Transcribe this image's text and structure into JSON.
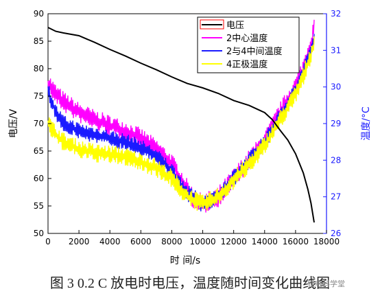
{
  "caption": "图 3 0.2 C 放电时电压，温度随时间变化曲线图",
  "watermark": "锂电科学堂",
  "chart_data": {
    "type": "line",
    "xlabel": "时 间/s",
    "ylabel_left": "电压/V",
    "ylabel_right": "温度/°C",
    "xlim": [
      0,
      18000
    ],
    "ylim_left": [
      50,
      90
    ],
    "ylim_right": [
      26,
      32
    ],
    "xticks": [
      0,
      2000,
      4000,
      6000,
      8000,
      10000,
      12000,
      14000,
      16000,
      18000
    ],
    "yticks_left": [
      50,
      55,
      60,
      65,
      70,
      75,
      80,
      85,
      90
    ],
    "yticks_right": [
      26,
      27,
      28,
      29,
      30,
      31,
      32
    ],
    "legend_position": "top-right",
    "colors": {
      "axis_left": "#000000",
      "axis_right": "#1a1aff"
    },
    "series": [
      {
        "name": "电压",
        "axis": "left",
        "color": "#000000",
        "noise": 0,
        "x": [
          0,
          500,
          1000,
          2000,
          3000,
          4000,
          5000,
          6000,
          7000,
          8000,
          9000,
          10000,
          11000,
          12000,
          13000,
          14000,
          14500,
          15000,
          15500,
          16000,
          16500,
          16800,
          17000,
          17200
        ],
        "y": [
          87.5,
          86.8,
          86.5,
          86.0,
          84.8,
          83.5,
          82.3,
          81.0,
          79.8,
          78.5,
          77.3,
          76.5,
          75.5,
          74.2,
          73.3,
          72.0,
          70.7,
          68.8,
          67.0,
          64.5,
          61.0,
          58.0,
          55.5,
          52.0
        ]
      },
      {
        "name": "2中心温度",
        "axis": "right",
        "color": "#ff00ff",
        "noise": 0.22,
        "x": [
          0,
          500,
          1000,
          2000,
          3000,
          4000,
          5000,
          6000,
          7000,
          8000,
          9000,
          9500,
          10000,
          10500,
          11000,
          12000,
          13000,
          14000,
          15000,
          16000,
          16500,
          17000,
          17200
        ],
        "y": [
          30.1,
          29.8,
          29.6,
          29.3,
          29.1,
          28.95,
          28.8,
          28.6,
          28.3,
          27.9,
          27.2,
          26.9,
          26.8,
          26.9,
          27.0,
          27.5,
          28.0,
          28.5,
          29.3,
          30.0,
          30.5,
          31.2,
          31.6
        ]
      },
      {
        "name": "2与4中间温度",
        "axis": "right",
        "color": "#1a1aff",
        "noise": 0.18,
        "x": [
          0,
          500,
          1000,
          2000,
          3000,
          4000,
          5000,
          6000,
          7000,
          8000,
          9000,
          9500,
          10000,
          10500,
          11000,
          12000,
          13000,
          14000,
          15000,
          16000,
          16500,
          17000,
          17200
        ],
        "y": [
          29.9,
          29.3,
          29.0,
          28.8,
          28.7,
          28.6,
          28.5,
          28.35,
          28.1,
          27.7,
          27.1,
          26.95,
          26.8,
          26.9,
          27.0,
          27.5,
          28.0,
          28.5,
          29.2,
          29.9,
          30.4,
          31.0,
          31.3
        ]
      },
      {
        "name": "4正极温度",
        "axis": "right",
        "color": "#ffff00",
        "noise": 0.2,
        "x": [
          0,
          500,
          1000,
          2000,
          3000,
          4000,
          5000,
          6000,
          7000,
          8000,
          9000,
          9500,
          10000,
          10500,
          11000,
          12000,
          13000,
          14000,
          15000,
          16000,
          16500,
          17000,
          17200
        ],
        "y": [
          29.0,
          28.7,
          28.5,
          28.3,
          28.2,
          28.15,
          28.1,
          27.95,
          27.8,
          27.5,
          27.0,
          26.9,
          26.8,
          26.9,
          27.0,
          27.45,
          27.9,
          28.4,
          29.1,
          29.8,
          30.3,
          30.9,
          31.2
        ]
      }
    ]
  }
}
